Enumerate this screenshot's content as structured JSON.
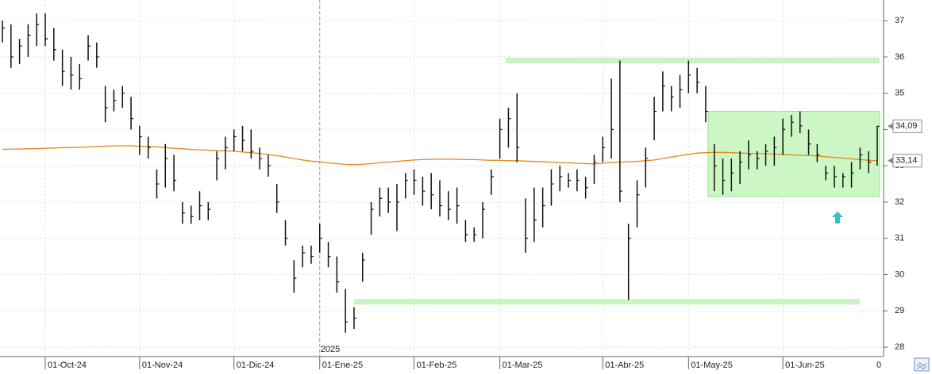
{
  "chart_data": {
    "type": "ohlc",
    "categories": [
      null,
      null,
      null,
      null,
      null,
      "01-Oct-24",
      null,
      null,
      null,
      null,
      null,
      null,
      null,
      null,
      null,
      null,
      "01-Nov-24",
      null,
      null,
      null,
      null,
      null,
      null,
      null,
      null,
      null,
      null,
      "01-Dic-24",
      null,
      null,
      null,
      null,
      null,
      null,
      null,
      null,
      null,
      "01-Ene-25",
      null,
      null,
      null,
      null,
      null,
      null,
      null,
      null,
      null,
      null,
      "01-Feb-25",
      null,
      null,
      null,
      null,
      null,
      null,
      null,
      null,
      null,
      "01-Mar-25",
      null,
      null,
      null,
      null,
      null,
      null,
      null,
      null,
      null,
      null,
      null,
      "01-Abr-25",
      null,
      null,
      null,
      null,
      null,
      null,
      null,
      null,
      null,
      "01-May-25",
      null,
      null,
      null,
      null,
      null,
      null,
      null,
      null,
      null,
      null,
      "01-Jun-25",
      null,
      null,
      null,
      null,
      null,
      null,
      null,
      null,
      null,
      null,
      null
    ],
    "year_label": "2025",
    "x_end_label": "0",
    "high": [
      37,
      36.9,
      36.5,
      36.9,
      37.2,
      37.2,
      36.8,
      36.2,
      36,
      35.8,
      36.6,
      36.4,
      35.2,
      35.1,
      35.2,
      34.9,
      34.1,
      33.8,
      32.9,
      33.6,
      33.3,
      32,
      31.9,
      32.3,
      32,
      33.4,
      33.8,
      34,
      34.1,
      34,
      33.5,
      33.3,
      32.5,
      31.5,
      30.4,
      30.8,
      30.8,
      31.4,
      30.9,
      30.5,
      29.6,
      29.1,
      30.6,
      32,
      32.4,
      32.4,
      32.5,
      32.8,
      32.9,
      32.7,
      32.8,
      32.6,
      32.3,
      32.4,
      31.5,
      31.3,
      32,
      32.9,
      34.3,
      34.6,
      35,
      32.1,
      32.4,
      32.4,
      32.9,
      33,
      32.8,
      32.9,
      32.7,
      33.3,
      33.8,
      35.4,
      35.9,
      31.4,
      32.6,
      33.5,
      34.9,
      35.6,
      35.2,
      35.5,
      35.9,
      35.7,
      35.2,
      33.6,
      33.2,
      33.2,
      33.4,
      33.7,
      33.4,
      33.6,
      33.8,
      34.3,
      34.4,
      34.5,
      34,
      33.6,
      33,
      33,
      32.8,
      33.1,
      33.5,
      33.4,
      34.1
    ],
    "low": [
      36.4,
      35.7,
      35.8,
      36,
      36.3,
      36.3,
      35.9,
      35.2,
      35.1,
      35.1,
      35.9,
      35.7,
      34.2,
      34.5,
      34.6,
      34,
      33.3,
      33.2,
      32.1,
      32.4,
      32.3,
      31.4,
      31.4,
      31.5,
      31.5,
      32.6,
      32.9,
      33.4,
      33.4,
      33.2,
      32.9,
      32.7,
      31.7,
      30.8,
      29.5,
      30.2,
      30.3,
      30.6,
      30.2,
      29.5,
      28.4,
      28.5,
      29.8,
      31.1,
      31.6,
      31.7,
      31.2,
      32.1,
      32.2,
      31.9,
      31.8,
      31.6,
      31.5,
      31.4,
      30.9,
      30.9,
      31,
      32.2,
      33.2,
      33.5,
      33.1,
      30.6,
      30.9,
      31.3,
      31.9,
      32.3,
      32.4,
      32.3,
      32.1,
      32.5,
      33.1,
      33.2,
      32,
      29.3,
      31.3,
      32.4,
      33.7,
      34.5,
      34.5,
      34.6,
      35,
      35,
      34.2,
      32.3,
      32.2,
      32.3,
      32.5,
      32.9,
      32.9,
      33,
      33,
      33.3,
      33.8,
      33.9,
      33.3,
      33.1,
      32.6,
      32.4,
      32.4,
      32.4,
      32.9,
      32.8,
      33
    ],
    "close": [
      36.8,
      36,
      36.3,
      36.6,
      36.9,
      36.5,
      36.2,
      35.6,
      35.5,
      35.4,
      36.3,
      36,
      34.6,
      34.8,
      35,
      34.3,
      33.8,
      33.5,
      32.5,
      33.2,
      32.6,
      31.7,
      31.6,
      31.9,
      31.8,
      33.2,
      33.5,
      33.8,
      33.7,
      33.4,
      33.2,
      33,
      32,
      31,
      29.9,
      30.6,
      30.5,
      31,
      30.5,
      29.8,
      28.7,
      28.8,
      30.4,
      31.8,
      32.1,
      32,
      32,
      32.6,
      32.6,
      32.3,
      32.2,
      31.9,
      31.8,
      31.9,
      31.1,
      31.1,
      31.8,
      32.7,
      34,
      34.3,
      33.5,
      31,
      31.5,
      31.9,
      32.5,
      32.7,
      32.6,
      32.6,
      32.4,
      33.1,
      33.5,
      34,
      32.3,
      31,
      32.2,
      33.2,
      34.5,
      35.2,
      34.9,
      35.1,
      35.5,
      35.3,
      34.5,
      33,
      32.6,
      32.8,
      33.1,
      33.3,
      33.2,
      33.4,
      33.5,
      34,
      34.2,
      34.1,
      33.6,
      33.3,
      32.8,
      32.7,
      32.7,
      32.8,
      33.3,
      33.1,
      34.09
    ],
    "bar_color": "#111111",
    "ma": {
      "color": "#e0891c",
      "values": [
        33.45,
        33.46,
        33.46,
        33.47,
        33.47,
        33.48,
        33.49,
        33.5,
        33.5,
        33.51,
        33.52,
        33.53,
        33.54,
        33.55,
        33.55,
        33.55,
        33.54,
        33.53,
        33.52,
        33.5,
        33.48,
        33.47,
        33.45,
        33.44,
        33.43,
        33.42,
        33.41,
        33.4,
        33.38,
        33.36,
        33.34,
        33.31,
        33.28,
        33.24,
        33.2,
        33.16,
        33.13,
        33.11,
        33.08,
        33.06,
        33.04,
        33.03,
        33.04,
        33.06,
        33.08,
        33.1,
        33.12,
        33.14,
        33.16,
        33.17,
        33.18,
        33.18,
        33.18,
        33.18,
        33.17,
        33.17,
        33.16,
        33.15,
        33.15,
        33.14,
        33.14,
        33.13,
        33.12,
        33.11,
        33.1,
        33.09,
        33.08,
        33.07,
        33.06,
        33.05,
        33.07,
        33.09,
        33.1,
        33.11,
        33.12,
        33.14,
        33.16,
        33.2,
        33.24,
        33.28,
        33.32,
        33.35,
        33.36,
        33.37,
        33.37,
        33.36,
        33.35,
        33.34,
        33.34,
        33.33,
        33.32,
        33.31,
        33.3,
        33.29,
        33.28,
        33.27,
        33.25,
        33.23,
        33.21,
        33.19,
        33.17,
        33.15,
        33.14
      ]
    },
    "resistance": 35.9,
    "support": 29.25,
    "range_box": [
      32.15,
      34.5
    ],
    "last_labels": [
      {
        "value": 34.09,
        "label": "34,09"
      },
      {
        "value": 33.14,
        "label": "33,14"
      }
    ],
    "ylim": [
      27.74,
      37.57
    ],
    "yticks": [
      28,
      29,
      30,
      31,
      32,
      33,
      34,
      35,
      36,
      37
    ],
    "grid": true
  }
}
